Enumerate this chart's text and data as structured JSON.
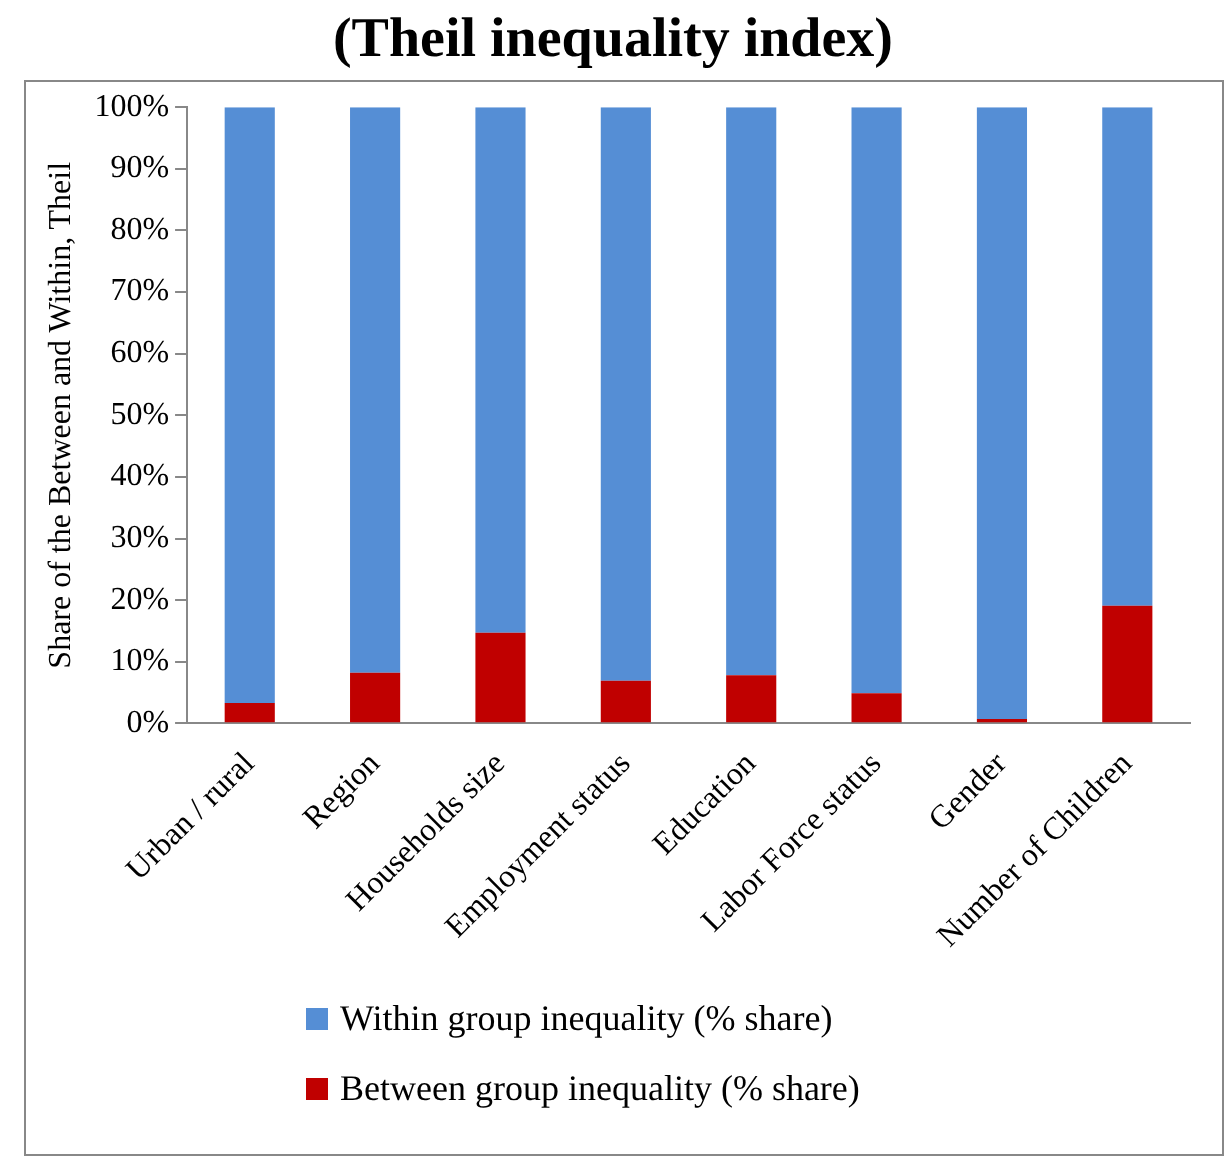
{
  "chart_data": {
    "type": "bar",
    "title": "(Theil inequality index)",
    "ylabel": "Share of the Between and Within, Theil",
    "categories": [
      "Urban / rural",
      "Region",
      "Households size",
      "Employment status",
      "Education",
      "Labor Force status",
      "Gender",
      "Number of Children"
    ],
    "series": [
      {
        "name": "Between group inequality (% share)",
        "color": "#c00000",
        "values": [
          3.3,
          8.2,
          14.7,
          6.9,
          7.8,
          4.9,
          0.7,
          19.1
        ]
      },
      {
        "name": "Within group inequality (% share)",
        "color": "#558ed5",
        "values": [
          96.7,
          91.8,
          85.3,
          93.1,
          92.2,
          95.1,
          99.3,
          80.9
        ]
      }
    ],
    "stacked": true,
    "ylim": [
      0,
      100
    ],
    "yticks": [
      {
        "value": 0,
        "label": "0%"
      },
      {
        "value": 10,
        "label": "10%"
      },
      {
        "value": 20,
        "label": "20%"
      },
      {
        "value": 30,
        "label": "30%"
      },
      {
        "value": 40,
        "label": "40%"
      },
      {
        "value": 50,
        "label": "50%"
      },
      {
        "value": 60,
        "label": "60%"
      },
      {
        "value": 70,
        "label": "70%"
      },
      {
        "value": 80,
        "label": "80%"
      },
      {
        "value": 90,
        "label": "90%"
      },
      {
        "value": 100,
        "label": "100%"
      }
    ],
    "grid": false,
    "legend": "bottom"
  }
}
